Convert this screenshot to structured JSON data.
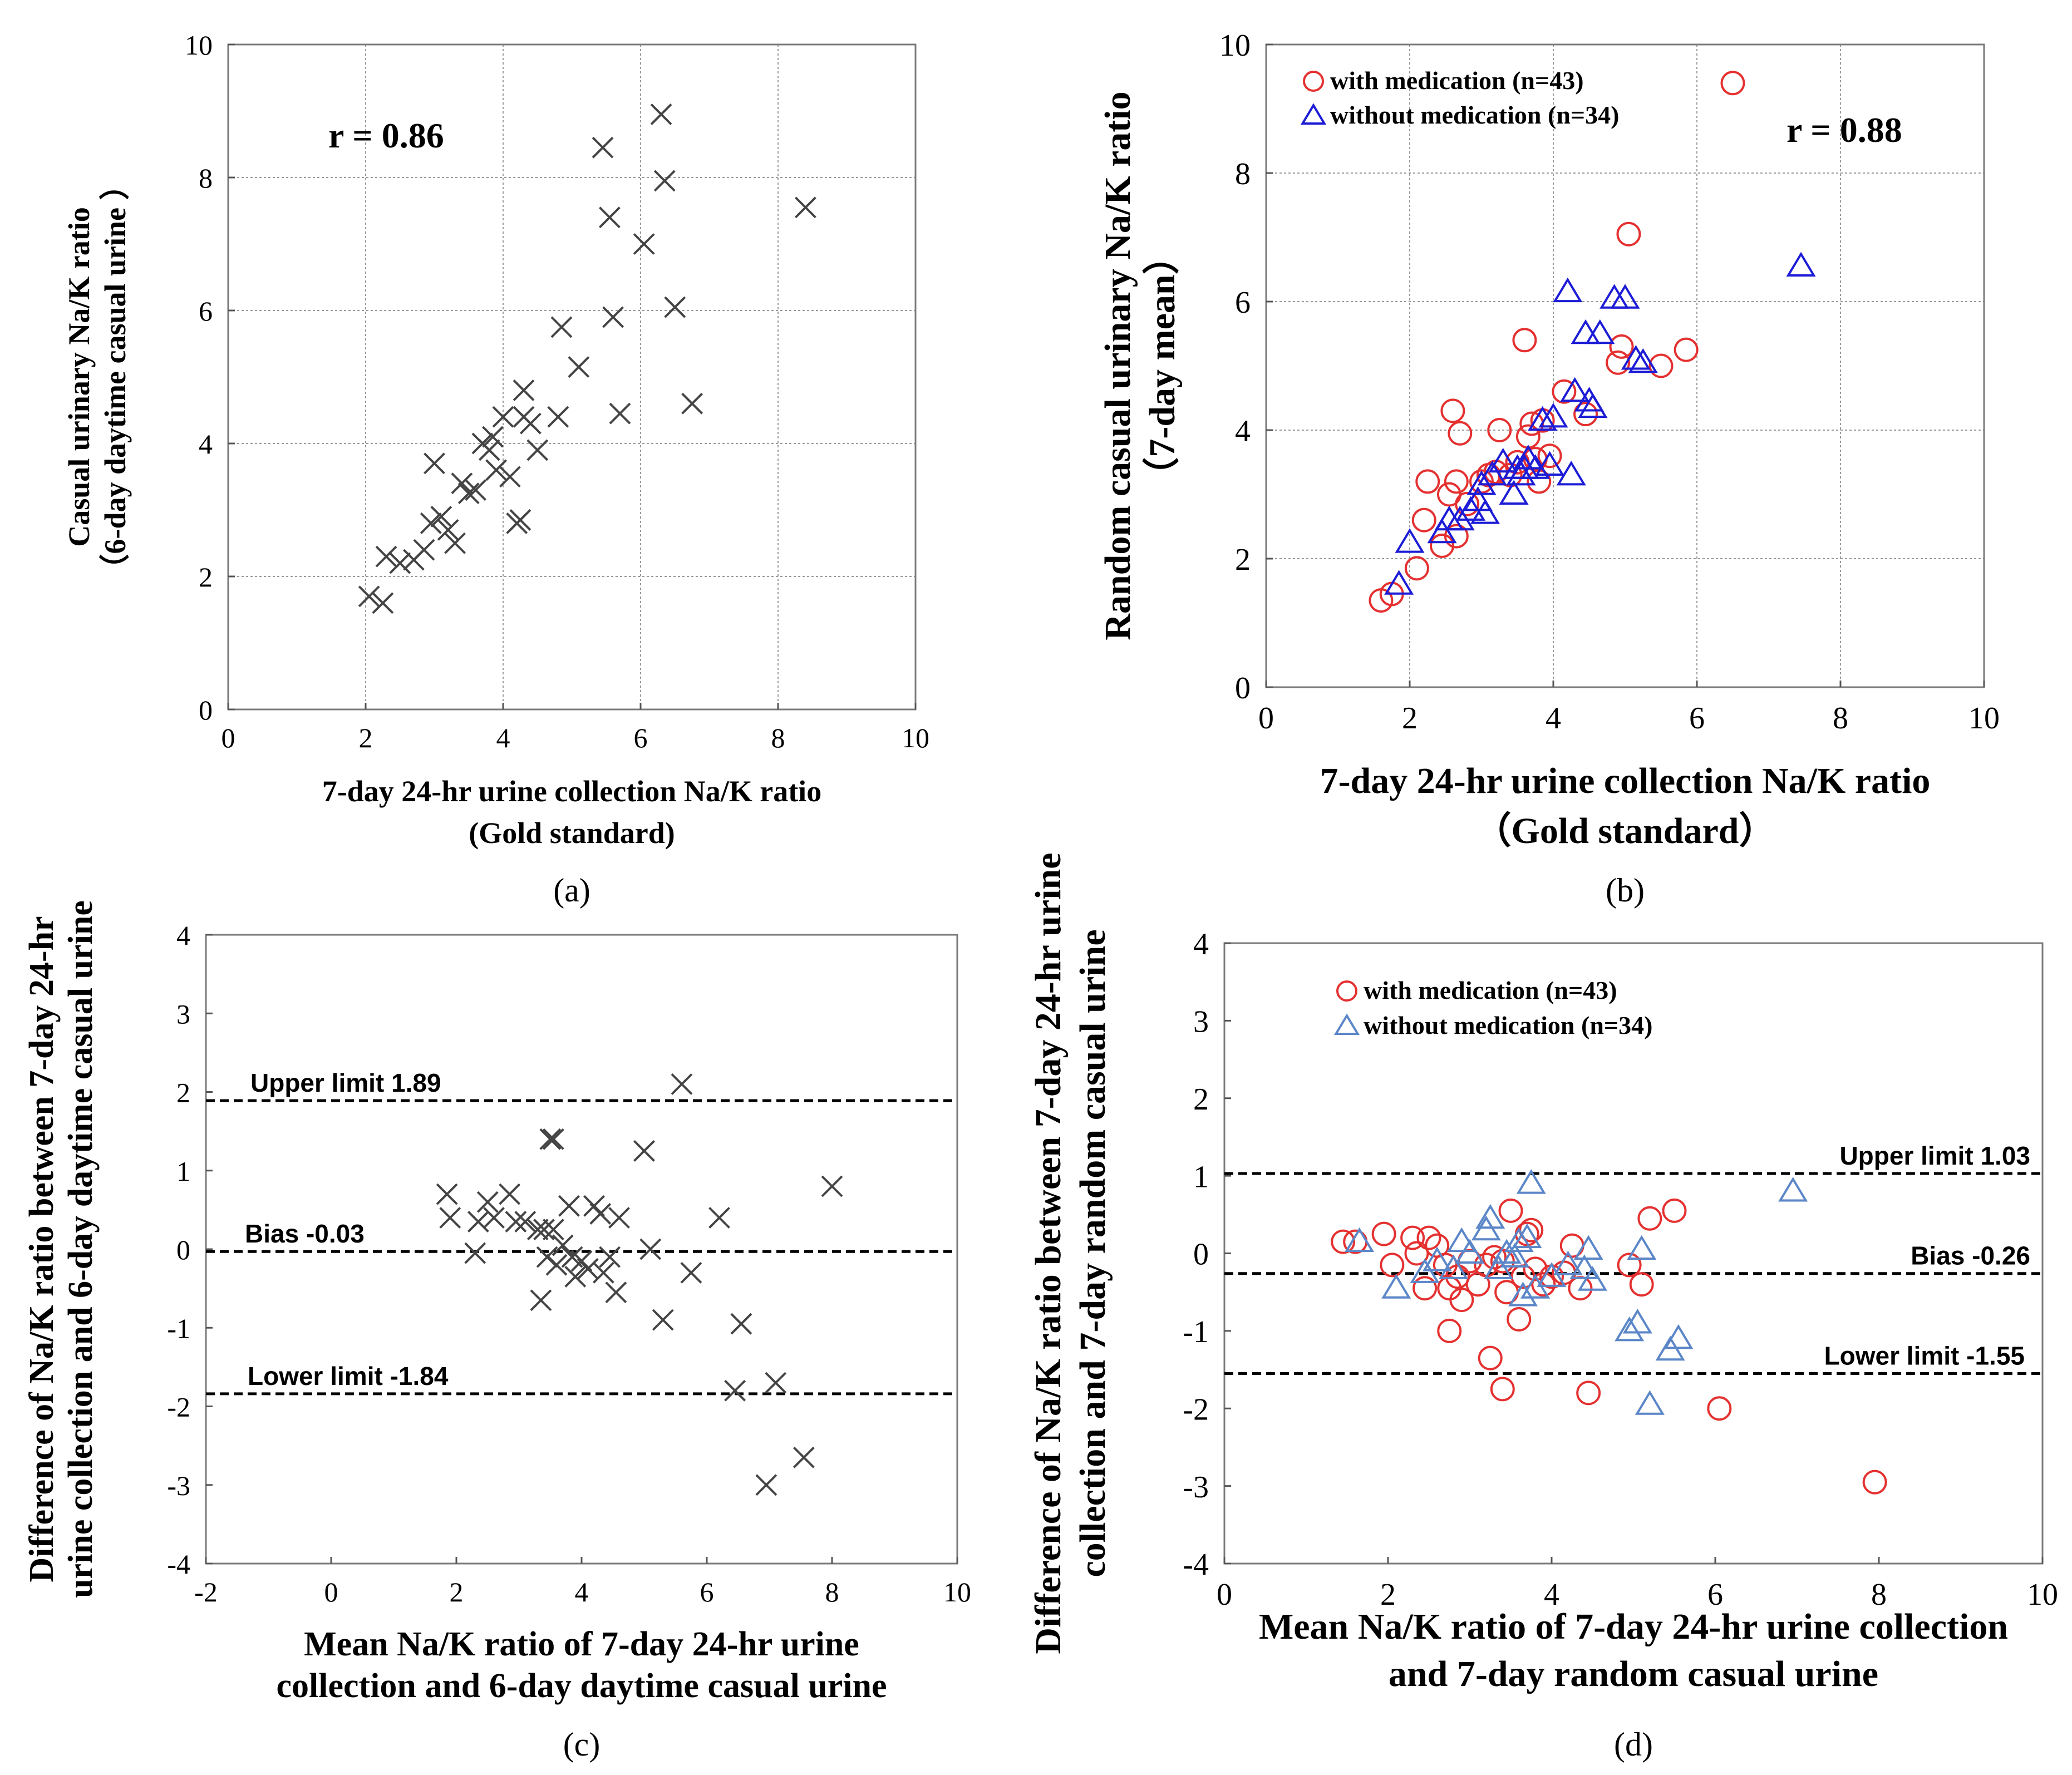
{
  "colors": {
    "black": "#000000",
    "gray": "#444444",
    "red": "#e53030",
    "blue": "#1c1cd6",
    "lightblue": "#5b86c8"
  },
  "chart_data": [
    {
      "panel": "a",
      "type": "scatter",
      "caption": "(a)",
      "annotation": "r = 0.86",
      "xlabel": [
        "7-day 24-hr urine  collection Na/K ratio",
        "(Gold standard)"
      ],
      "ylabel": [
        "Casual urinary  Na/K ratio",
        "（6-day daytime casual urine  ）"
      ],
      "xlim": [
        0,
        10
      ],
      "ylim": [
        0,
        10
      ],
      "xticks": [
        0,
        2,
        4,
        6,
        8,
        10
      ],
      "yticks": [
        0,
        2,
        4,
        6,
        8,
        10
      ],
      "grid": true,
      "series": [
        {
          "name": "all",
          "marker": "x",
          "color": "#444444",
          "points": [
            [
              2.05,
              1.7
            ],
            [
              2.25,
              1.6
            ],
            [
              2.3,
              2.3
            ],
            [
              2.5,
              2.2
            ],
            [
              2.7,
              2.25
            ],
            [
              2.85,
              2.4
            ],
            [
              2.95,
              2.8
            ],
            [
              3.0,
              3.7
            ],
            [
              3.1,
              2.9
            ],
            [
              3.2,
              2.7
            ],
            [
              3.3,
              2.5
            ],
            [
              3.4,
              3.4
            ],
            [
              3.5,
              3.25
            ],
            [
              3.6,
              3.3
            ],
            [
              3.7,
              4.0
            ],
            [
              3.8,
              3.9
            ],
            [
              3.85,
              4.1
            ],
            [
              3.9,
              3.6
            ],
            [
              4.0,
              4.4
            ],
            [
              4.1,
              3.5
            ],
            [
              4.2,
              2.8
            ],
            [
              4.25,
              2.85
            ],
            [
              4.3,
              4.4
            ],
            [
              4.3,
              4.8
            ],
            [
              4.4,
              4.3
            ],
            [
              4.5,
              3.9
            ],
            [
              4.8,
              4.4
            ],
            [
              4.85,
              5.75
            ],
            [
              5.1,
              5.15
            ],
            [
              5.45,
              8.45
            ],
            [
              5.55,
              7.4
            ],
            [
              5.6,
              5.9
            ],
            [
              5.7,
              4.45
            ],
            [
              6.05,
              7.0
            ],
            [
              6.3,
              8.95
            ],
            [
              6.35,
              7.95
            ],
            [
              6.5,
              6.05
            ],
            [
              6.75,
              4.6
            ],
            [
              8.4,
              7.55
            ]
          ]
        }
      ]
    },
    {
      "panel": "b",
      "type": "scatter",
      "caption": "(b)",
      "annotation": "r = 0.88",
      "xlabel": [
        "7-day 24-hr urine collection Na/K ratio",
        "（Gold standard）"
      ],
      "ylabel": [
        "Random  casual urinary  Na/K ratio",
        "（7-day mean）"
      ],
      "xlim": [
        0,
        10
      ],
      "ylim": [
        0,
        10
      ],
      "xticks": [
        0,
        2,
        4,
        6,
        8,
        10
      ],
      "yticks": [
        0,
        2,
        4,
        6,
        8,
        10
      ],
      "grid": true,
      "legend": [
        "with medication (n=43)",
        "without medication (n=34)"
      ],
      "series": [
        {
          "name": "with medication (n=43)",
          "marker": "circle",
          "color": "#e53030",
          "points": [
            [
              1.6,
              1.35
            ],
            [
              1.75,
              1.45
            ],
            [
              2.1,
              1.85
            ],
            [
              2.2,
              2.6
            ],
            [
              2.25,
              3.2
            ],
            [
              2.45,
              2.2
            ],
            [
              2.55,
              3.0
            ],
            [
              2.6,
              4.3
            ],
            [
              2.65,
              2.35
            ],
            [
              2.65,
              3.2
            ],
            [
              2.7,
              3.95
            ],
            [
              2.8,
              2.85
            ],
            [
              3.0,
              3.2
            ],
            [
              3.1,
              3.3
            ],
            [
              3.2,
              3.35
            ],
            [
              3.25,
              4.0
            ],
            [
              3.4,
              3.3
            ],
            [
              3.5,
              3.5
            ],
            [
              3.6,
              5.4
            ],
            [
              3.65,
              3.9
            ],
            [
              3.7,
              4.1
            ],
            [
              3.75,
              3.55
            ],
            [
              3.8,
              3.2
            ],
            [
              3.85,
              4.15
            ],
            [
              3.95,
              3.6
            ],
            [
              4.15,
              4.6
            ],
            [
              4.45,
              4.25
            ],
            [
              4.9,
              5.05
            ],
            [
              4.95,
              5.3
            ],
            [
              5.05,
              7.05
            ],
            [
              5.5,
              5.0
            ],
            [
              5.85,
              5.25
            ],
            [
              6.5,
              9.4
            ]
          ]
        },
        {
          "name": "without medication (n=34)",
          "marker": "triangle",
          "color": "#1c1cd6",
          "points": [
            [
              1.85,
              1.6
            ],
            [
              2.0,
              2.25
            ],
            [
              2.45,
              2.4
            ],
            [
              2.55,
              2.6
            ],
            [
              2.7,
              2.6
            ],
            [
              2.85,
              2.75
            ],
            [
              2.95,
              2.9
            ],
            [
              3.0,
              3.15
            ],
            [
              3.05,
              2.7
            ],
            [
              3.15,
              3.3
            ],
            [
              3.3,
              3.5
            ],
            [
              3.45,
              3.0
            ],
            [
              3.5,
              3.4
            ],
            [
              3.55,
              3.3
            ],
            [
              3.6,
              3.4
            ],
            [
              3.65,
              3.55
            ],
            [
              3.75,
              3.4
            ],
            [
              3.85,
              4.15
            ],
            [
              3.95,
              3.45
            ],
            [
              4.0,
              4.2
            ],
            [
              4.2,
              6.15
            ],
            [
              4.25,
              3.3
            ],
            [
              4.3,
              4.6
            ],
            [
              4.45,
              5.5
            ],
            [
              4.5,
              4.45
            ],
            [
              4.55,
              4.35
            ],
            [
              4.65,
              5.5
            ],
            [
              4.85,
              6.05
            ],
            [
              5.0,
              6.05
            ],
            [
              5.15,
              5.1
            ],
            [
              5.25,
              5.05
            ],
            [
              7.45,
              6.55
            ]
          ]
        }
      ]
    },
    {
      "panel": "c",
      "type": "scatter",
      "caption": "(c)",
      "xlabel": [
        "Mean Na/K ratio of 7-day 24-hr urine",
        "collection and 6-day daytime casual urine"
      ],
      "ylabel": [
        "Difference of Na/K ratio between 7-day 24-hr",
        "urine collection and 6-day daytime casual urine"
      ],
      "xlim": [
        -2,
        10
      ],
      "ylim": [
        -4,
        4
      ],
      "xticks": [
        -2,
        0,
        2,
        4,
        6,
        8,
        10
      ],
      "yticks": [
        -4,
        -3,
        -2,
        -1,
        0,
        1,
        2,
        3,
        4
      ],
      "grid": false,
      "reference_lines": [
        {
          "label": "Upper limit 1.89",
          "value": 1.89
        },
        {
          "label": "Bias -0.03",
          "value": -0.03
        },
        {
          "label": "Lower limit -1.84",
          "value": -1.84
        }
      ],
      "series": [
        {
          "name": "all",
          "marker": "x",
          "color": "#444444",
          "points": [
            [
              1.85,
              0.7
            ],
            [
              1.9,
              0.4
            ],
            [
              2.3,
              -0.05
            ],
            [
              2.35,
              0.35
            ],
            [
              2.5,
              0.6
            ],
            [
              2.6,
              0.4
            ],
            [
              2.85,
              0.7
            ],
            [
              2.95,
              0.35
            ],
            [
              3.1,
              0.35
            ],
            [
              3.3,
              0.25
            ],
            [
              3.35,
              -0.65
            ],
            [
              3.4,
              0.25
            ],
            [
              3.45,
              -0.1
            ],
            [
              3.5,
              1.4
            ],
            [
              3.55,
              1.4
            ],
            [
              3.55,
              0.25
            ],
            [
              3.6,
              -0.2
            ],
            [
              3.7,
              0.05
            ],
            [
              3.8,
              0.55
            ],
            [
              3.85,
              -0.1
            ],
            [
              3.9,
              -0.35
            ],
            [
              4.0,
              -0.15
            ],
            [
              4.1,
              -0.25
            ],
            [
              4.2,
              0.55
            ],
            [
              4.3,
              0.45
            ],
            [
              4.35,
              -0.3
            ],
            [
              4.45,
              -0.1
            ],
            [
              4.55,
              -0.55
            ],
            [
              4.6,
              0.4
            ],
            [
              5.0,
              1.25
            ],
            [
              5.1,
              0.0
            ],
            [
              5.3,
              -0.9
            ],
            [
              5.6,
              2.1
            ],
            [
              5.75,
              -0.3
            ],
            [
              6.2,
              0.4
            ],
            [
              6.45,
              -1.8
            ],
            [
              6.55,
              -0.95
            ],
            [
              6.95,
              -3.0
            ],
            [
              7.1,
              -1.7
            ],
            [
              7.55,
              -2.65
            ],
            [
              8.0,
              0.8
            ]
          ]
        }
      ]
    },
    {
      "panel": "d",
      "type": "scatter",
      "caption": "(d)",
      "xlabel": [
        "Mean Na/K ratio of 7-day 24-hr urine collection",
        "and 7-day random casual urine"
      ],
      "ylabel": [
        "Difference of Na/K ratio between 7-day 24-hr urine",
        "collection and 7-day random  casual urine"
      ],
      "xlim": [
        0,
        10
      ],
      "ylim": [
        -4,
        4
      ],
      "xticks": [
        0,
        2,
        4,
        6,
        8,
        10
      ],
      "yticks": [
        -4,
        -3,
        -2,
        -1,
        0,
        1,
        2,
        3,
        4
      ],
      "grid": false,
      "legend": [
        "with medication (n=43)",
        "without medication (n=34)"
      ],
      "reference_lines": [
        {
          "label": "Upper limit 1.03",
          "value": 1.03
        },
        {
          "label": "Bias -0.26",
          "value": -0.26
        },
        {
          "label": "Lower limit -1.55",
          "value": -1.55
        }
      ],
      "series": [
        {
          "name": "with medication (n=43)",
          "marker": "circle",
          "color": "#e53030",
          "points": [
            [
              1.45,
              0.15
            ],
            [
              1.6,
              0.15
            ],
            [
              1.95,
              0.25
            ],
            [
              2.05,
              -0.15
            ],
            [
              2.3,
              0.2
            ],
            [
              2.35,
              0.0
            ],
            [
              2.45,
              -0.45
            ],
            [
              2.5,
              0.2
            ],
            [
              2.6,
              0.1
            ],
            [
              2.7,
              -0.15
            ],
            [
              2.75,
              -0.45
            ],
            [
              2.75,
              -1.0
            ],
            [
              2.85,
              -0.3
            ],
            [
              2.9,
              -0.6
            ],
            [
              3.0,
              -0.1
            ],
            [
              3.1,
              -0.4
            ],
            [
              3.2,
              -0.15
            ],
            [
              3.25,
              -1.35
            ],
            [
              3.3,
              -0.05
            ],
            [
              3.4,
              -0.1
            ],
            [
              3.4,
              -1.75
            ],
            [
              3.45,
              -0.5
            ],
            [
              3.5,
              0.55
            ],
            [
              3.6,
              -0.85
            ],
            [
              3.65,
              -0.3
            ],
            [
              3.7,
              0.25
            ],
            [
              3.75,
              0.3
            ],
            [
              3.8,
              -0.2
            ],
            [
              3.9,
              -0.4
            ],
            [
              4.0,
              -0.3
            ],
            [
              4.15,
              -0.25
            ],
            [
              4.25,
              0.1
            ],
            [
              4.35,
              -0.45
            ],
            [
              4.45,
              -1.8
            ],
            [
              4.95,
              -0.15
            ],
            [
              5.1,
              -0.4
            ],
            [
              5.2,
              0.45
            ],
            [
              5.5,
              0.55
            ],
            [
              6.05,
              -2.0
            ],
            [
              7.95,
              -2.95
            ]
          ]
        },
        {
          "name": "without medication (n=34)",
          "marker": "triangle",
          "color": "#5b86c8",
          "points": [
            [
              1.65,
              0.15
            ],
            [
              2.1,
              -0.45
            ],
            [
              2.45,
              -0.25
            ],
            [
              2.6,
              -0.1
            ],
            [
              2.8,
              -0.2
            ],
            [
              2.9,
              0.15
            ],
            [
              3.0,
              0.0
            ],
            [
              3.2,
              0.3
            ],
            [
              3.25,
              0.45
            ],
            [
              3.35,
              -0.2
            ],
            [
              3.45,
              0.0
            ],
            [
              3.55,
              -0.05
            ],
            [
              3.6,
              0.15
            ],
            [
              3.65,
              -0.55
            ],
            [
              3.7,
              0.2
            ],
            [
              3.75,
              0.9
            ],
            [
              3.8,
              -0.45
            ],
            [
              4.0,
              -0.3
            ],
            [
              4.2,
              -0.15
            ],
            [
              4.4,
              -0.2
            ],
            [
              4.45,
              0.05
            ],
            [
              4.5,
              -0.35
            ],
            [
              4.95,
              -1.0
            ],
            [
              5.05,
              -0.9
            ],
            [
              5.1,
              0.05
            ],
            [
              5.2,
              -1.95
            ],
            [
              5.45,
              -1.25
            ],
            [
              5.55,
              -1.1
            ],
            [
              6.95,
              0.8
            ]
          ]
        }
      ]
    }
  ]
}
